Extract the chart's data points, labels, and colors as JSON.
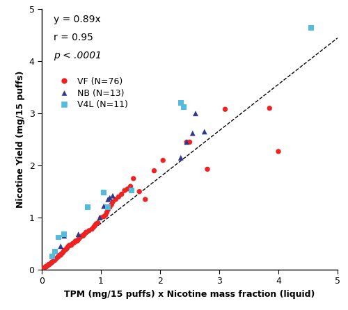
{
  "title_eq": "y = 0.89x",
  "title_r": "r = 0.95",
  "title_p": "p < .0001",
  "xlabel": "TPM (mg/15 puffs) x Nicotine mass fraction (liquid)",
  "ylabel": "Nicotine Yield (mg/15 puffs)",
  "xlim": [
    0,
    5
  ],
  "ylim": [
    0,
    5
  ],
  "xticks": [
    0,
    1,
    2,
    3,
    4,
    5
  ],
  "yticks": [
    0,
    1,
    2,
    3,
    4,
    5
  ],
  "slope": 0.89,
  "vf_color": "#EE2222",
  "nb_color": "#2E3A8C",
  "v4l_color": "#55BBDD",
  "VF": {
    "x": [
      0.02,
      0.04,
      0.05,
      0.06,
      0.07,
      0.08,
      0.09,
      0.1,
      0.11,
      0.12,
      0.13,
      0.15,
      0.16,
      0.17,
      0.18,
      0.2,
      0.22,
      0.23,
      0.24,
      0.25,
      0.27,
      0.28,
      0.3,
      0.32,
      0.33,
      0.35,
      0.37,
      0.38,
      0.4,
      0.42,
      0.43,
      0.45,
      0.47,
      0.5,
      0.52,
      0.55,
      0.57,
      0.6,
      0.62,
      0.63,
      0.65,
      0.68,
      0.7,
      0.72,
      0.75,
      0.8,
      0.85,
      0.88,
      0.9,
      0.92,
      0.95,
      1.0,
      1.05,
      1.08,
      1.1,
      1.12,
      1.15,
      1.18,
      1.2,
      1.25,
      1.3,
      1.35,
      1.4,
      1.45,
      1.5,
      1.55,
      1.65,
      1.75,
      1.9,
      2.05,
      2.45,
      2.5,
      2.8,
      3.1,
      3.85,
      4.0
    ],
    "y": [
      0.02,
      0.03,
      0.04,
      0.05,
      0.06,
      0.06,
      0.07,
      0.08,
      0.09,
      0.1,
      0.1,
      0.12,
      0.13,
      0.14,
      0.15,
      0.17,
      0.18,
      0.2,
      0.21,
      0.22,
      0.24,
      0.25,
      0.28,
      0.28,
      0.3,
      0.32,
      0.35,
      0.37,
      0.38,
      0.4,
      0.42,
      0.45,
      0.47,
      0.47,
      0.5,
      0.52,
      0.55,
      0.55,
      0.58,
      0.6,
      0.62,
      0.65,
      0.65,
      0.68,
      0.72,
      0.75,
      0.78,
      0.82,
      0.85,
      0.88,
      0.9,
      1.0,
      1.02,
      1.05,
      1.1,
      1.15,
      1.2,
      1.25,
      1.3,
      1.35,
      1.4,
      1.45,
      1.52,
      1.55,
      1.6,
      1.75,
      1.5,
      1.35,
      1.9,
      2.1,
      2.45,
      2.45,
      1.93,
      3.08,
      3.1,
      2.27
    ]
  },
  "NB": {
    "x": [
      0.32,
      0.38,
      0.62,
      0.98,
      1.05,
      1.12,
      1.15,
      1.2,
      2.35,
      2.45,
      2.55,
      2.6,
      2.75
    ],
    "y": [
      0.45,
      0.65,
      0.68,
      1.0,
      1.22,
      1.35,
      1.38,
      1.42,
      2.15,
      2.45,
      2.62,
      3.0,
      2.65
    ]
  },
  "V4L": {
    "x": [
      0.18,
      0.22,
      0.28,
      0.38,
      0.78,
      1.05,
      1.12,
      1.52,
      2.35,
      2.4,
      4.55
    ],
    "y": [
      0.25,
      0.35,
      0.62,
      0.68,
      1.2,
      1.48,
      1.2,
      1.52,
      3.2,
      3.12,
      4.65
    ]
  }
}
